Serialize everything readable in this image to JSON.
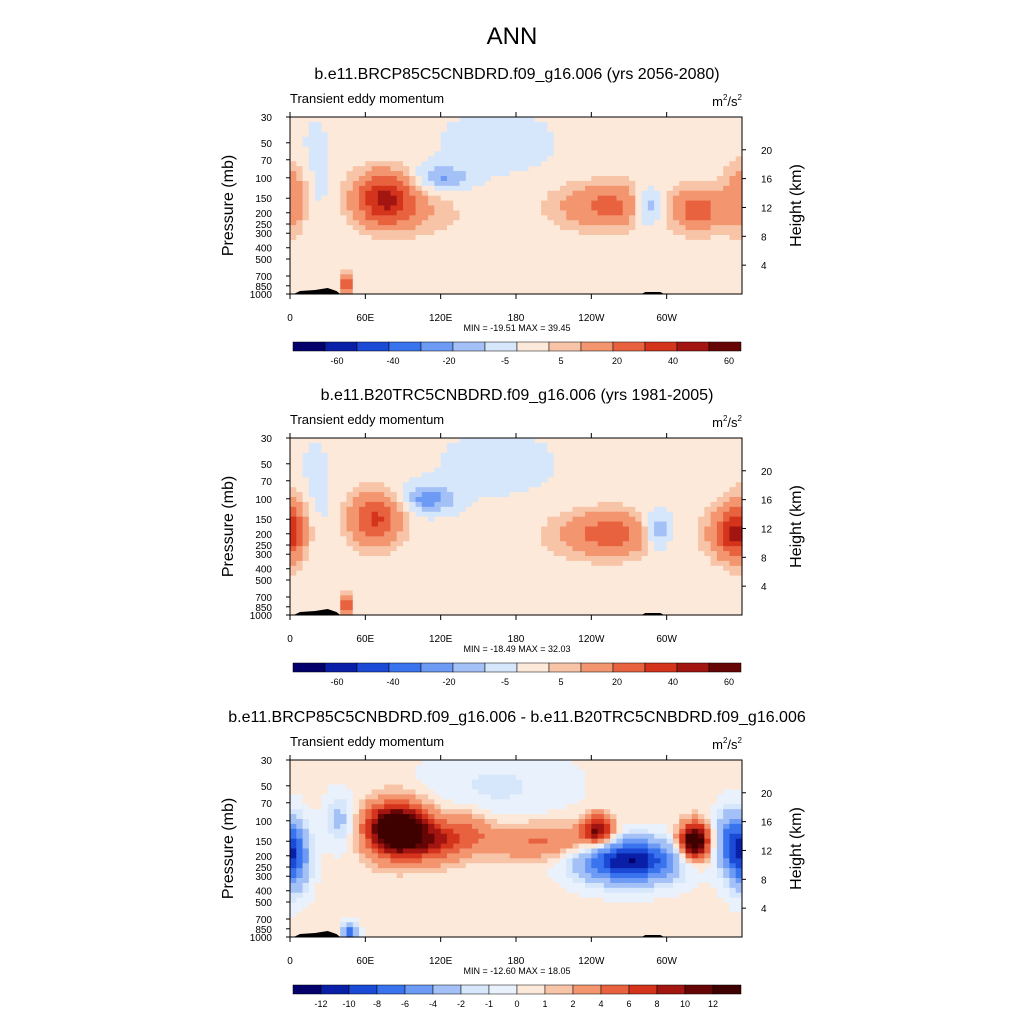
{
  "figure_title": "ANN",
  "chart_data": [
    {
      "type": "heatmap",
      "title": "b.e11.BRCP85C5CNBDRD.f09_g16.006 (yrs 2056-2080)",
      "subtitle_left": "Transient eddy momentum",
      "units": "m2/s2",
      "units_base": "m",
      "units_exp1": "2",
      "units_mid": "/s",
      "units_exp2": "2",
      "ylabel": "Pressure (mb)",
      "ylabel_right": "Height (km)",
      "pressure_ticks": [
        "30",
        "50",
        "70",
        "100",
        "150",
        "200",
        "250",
        "300",
        "400",
        "500",
        "700",
        "850",
        "1000"
      ],
      "height_ticks": [
        "20",
        "16",
        "12",
        "8",
        "4"
      ],
      "lon_ticks": [
        "0",
        "60E",
        "120E",
        "180",
        "120W",
        "60W"
      ],
      "stats": "MIN = -19.51  MAX =  39.45",
      "min": -19.51,
      "max": 39.45,
      "colorbar_labels": [
        "-60",
        "-40",
        "-20",
        "-5",
        "5",
        "20",
        "40",
        "60"
      ],
      "features": [
        {
          "lon": 0,
          "p": 150,
          "sx": 10,
          "sy": 0.45,
          "a": 18
        },
        {
          "lon": 20,
          "p": 100,
          "sx": 10,
          "sy": 0.9,
          "a": -4
        },
        {
          "lon": 75,
          "p": 150,
          "sx": 16,
          "sy": 0.35,
          "a": 39.45
        },
        {
          "lon": 100,
          "p": 200,
          "sx": 25,
          "sy": 0.3,
          "a": 8
        },
        {
          "lon": 120,
          "p": 100,
          "sx": 15,
          "sy": 0.18,
          "a": -12
        },
        {
          "lon": 165,
          "p": 50,
          "sx": 40,
          "sy": 0.55,
          "a": -3.5
        },
        {
          "lon": 255,
          "p": 175,
          "sx": 28,
          "sy": 0.3,
          "a": 22
        },
        {
          "lon": 285,
          "p": 175,
          "sx": 9,
          "sy": 0.28,
          "a": -19.51
        },
        {
          "lon": 325,
          "p": 190,
          "sx": 13,
          "sy": 0.28,
          "a": 24
        },
        {
          "lon": 45,
          "p": 850,
          "sx": 3,
          "sy": 0.15,
          "a": 30
        }
      ]
    },
    {
      "type": "heatmap",
      "title": "b.e11.B20TRC5CNBDRD.f09_g16.006 (yrs 1981-2005)",
      "subtitle_left": "Transient eddy momentum",
      "units": "m2/s2",
      "units_base": "m",
      "units_exp1": "2",
      "units_mid": "/s",
      "units_exp2": "2",
      "ylabel": "Pressure (mb)",
      "ylabel_right": "Height (km)",
      "pressure_ticks": [
        "30",
        "50",
        "70",
        "100",
        "150",
        "200",
        "250",
        "300",
        "400",
        "500",
        "700",
        "850",
        "1000"
      ],
      "height_ticks": [
        "20",
        "16",
        "12",
        "8",
        "4"
      ],
      "lon_ticks": [
        "0",
        "60E",
        "120E",
        "180",
        "120W",
        "60W"
      ],
      "stats": "MIN = -18.49  MAX =  32.03",
      "min": -18.49,
      "max": 32.03,
      "colorbar_labels": [
        "-60",
        "-40",
        "-20",
        "-5",
        "5",
        "20",
        "40",
        "60"
      ],
      "features": [
        {
          "lon": 0,
          "p": 180,
          "sx": 10,
          "sy": 0.45,
          "a": 22
        },
        {
          "lon": 20,
          "p": 100,
          "sx": 10,
          "sy": 0.9,
          "a": -4
        },
        {
          "lon": 68,
          "p": 150,
          "sx": 14,
          "sy": 0.35,
          "a": 30
        },
        {
          "lon": 110,
          "p": 100,
          "sx": 15,
          "sy": 0.2,
          "a": -14
        },
        {
          "lon": 165,
          "p": 50,
          "sx": 40,
          "sy": 0.55,
          "a": -3.5
        },
        {
          "lon": 255,
          "p": 200,
          "sx": 28,
          "sy": 0.3,
          "a": 24
        },
        {
          "lon": 292,
          "p": 190,
          "sx": 9,
          "sy": 0.28,
          "a": -18.49
        },
        {
          "lon": 350,
          "p": 200,
          "sx": 12,
          "sy": 0.32,
          "a": 25
        },
        {
          "lon": 45,
          "p": 850,
          "sx": 3,
          "sy": 0.15,
          "a": 32.03
        }
      ]
    },
    {
      "type": "heatmap",
      "title": "b.e11.BRCP85C5CNBDRD.f09_g16.006 - b.e11.B20TRC5CNBDRD.f09_g16.006",
      "subtitle_left": "Transient eddy momentum",
      "units": "m2/s2",
      "units_base": "m",
      "units_exp1": "2",
      "units_mid": "/s",
      "units_exp2": "2",
      "ylabel": "Pressure (mb)",
      "ylabel_right": "Height (km)",
      "pressure_ticks": [
        "30",
        "50",
        "70",
        "100",
        "150",
        "200",
        "250",
        "300",
        "400",
        "500",
        "700",
        "850",
        "1000"
      ],
      "height_ticks": [
        "20",
        "16",
        "12",
        "8",
        "4"
      ],
      "lon_ticks": [
        "0",
        "60E",
        "120E",
        "180",
        "120W",
        "60W"
      ],
      "stats": "MIN = -12.60  MAX =  18.05",
      "min": -12.6,
      "max": 18.05,
      "colorbar_labels": [
        "-12",
        "-10",
        "-8",
        "-6",
        "-4",
        "-2",
        "-1",
        "0",
        "1",
        "2",
        "4",
        "6",
        "8",
        "10",
        "12"
      ],
      "features": [
        {
          "lon": 2,
          "p": 200,
          "sx": 9,
          "sy": 0.45,
          "a": -9
        },
        {
          "lon": 40,
          "p": 100,
          "sx": 8,
          "sy": 0.35,
          "a": -3
        },
        {
          "lon": 85,
          "p": 120,
          "sx": 16,
          "sy": 0.35,
          "a": 18.05
        },
        {
          "lon": 115,
          "p": 150,
          "sx": 15,
          "sy": 0.28,
          "a": 6
        },
        {
          "lon": 140,
          "p": 120,
          "sx": 14,
          "sy": 0.28,
          "a": 3
        },
        {
          "lon": 200,
          "p": 150,
          "sx": 40,
          "sy": 0.25,
          "a": 4
        },
        {
          "lon": 245,
          "p": 120,
          "sx": 8,
          "sy": 0.2,
          "a": 10
        },
        {
          "lon": 270,
          "p": 220,
          "sx": 26,
          "sy": 0.3,
          "a": -12.6
        },
        {
          "lon": 322,
          "p": 150,
          "sx": 8,
          "sy": 0.24,
          "a": 16
        },
        {
          "lon": 350,
          "p": 150,
          "sx": 8,
          "sy": 0.4,
          "a": -6
        },
        {
          "lon": 165,
          "p": 50,
          "sx": 40,
          "sy": 0.5,
          "a": -1.5
        },
        {
          "lon": 48,
          "p": 900,
          "sx": 4,
          "sy": 0.12,
          "a": -8
        }
      ]
    }
  ],
  "palette_13": [
    "#03006b",
    "#0a1fa8",
    "#1a4ad6",
    "#3a73ee",
    "#6c9af5",
    "#a3c0f7",
    "#d6e6fb",
    "#fde9da",
    "#f8c4a8",
    "#f39670",
    "#e8623f",
    "#d4331c",
    "#a31510",
    "#650505"
  ],
  "palette_diff": [
    "#03006b",
    "#0a1fa8",
    "#1a4ad6",
    "#3a73ee",
    "#6c9af5",
    "#a3c0f7",
    "#d6e6fb",
    "#e9f1fd",
    "#fde9da",
    "#f8c4a8",
    "#f39670",
    "#e8623f",
    "#d4331c",
    "#a31510",
    "#650505",
    "#3f0000"
  ]
}
